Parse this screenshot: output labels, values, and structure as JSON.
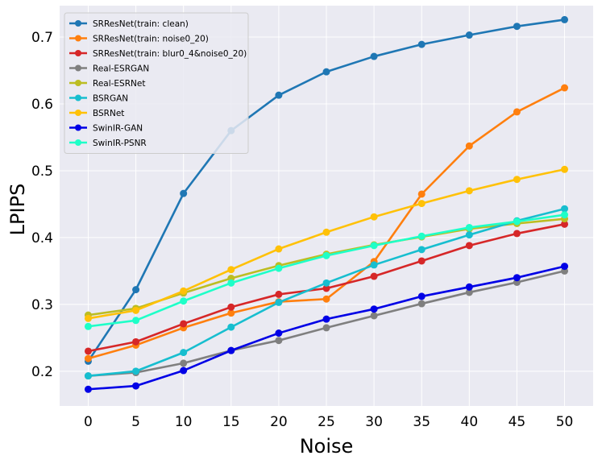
{
  "chart_data": {
    "type": "line",
    "xlabel": "Noise",
    "ylabel": "LPIPS",
    "x": [
      0,
      5,
      10,
      15,
      20,
      25,
      30,
      35,
      40,
      45,
      50
    ],
    "xlim": [
      -3,
      53
    ],
    "ylim": [
      0.148,
      0.747
    ],
    "xticks": [
      0,
      5,
      10,
      15,
      20,
      25,
      30,
      35,
      40,
      45,
      50
    ],
    "yticks": [
      0.2,
      0.3,
      0.4,
      0.5,
      0.6,
      0.7
    ],
    "ytick_labels": [
      "0.2",
      "0.3",
      "0.4",
      "0.5",
      "0.6",
      "0.7"
    ],
    "grid": true,
    "legend_position": "top-left",
    "series": [
      {
        "name": "SRResNet(train: clean)",
        "color": "#1f77b4",
        "values": [
          0.215,
          0.322,
          0.466,
          0.56,
          0.613,
          0.648,
          0.671,
          0.689,
          0.703,
          0.716,
          0.726
        ]
      },
      {
        "name": "SRResNet(train: noise0_20)",
        "color": "#ff7f0e",
        "values": [
          0.219,
          0.239,
          0.265,
          0.287,
          0.304,
          0.308,
          0.364,
          0.465,
          0.537,
          0.588,
          0.624
        ]
      },
      {
        "name": "SRResNet(train: blur0_4&noise0_20)",
        "color": "#d62728",
        "values": [
          0.23,
          0.244,
          0.271,
          0.296,
          0.315,
          0.324,
          0.342,
          0.365,
          0.388,
          0.406,
          0.42
        ]
      },
      {
        "name": "Real-ESRGAN",
        "color": "#7f7f7f",
        "values": [
          0.193,
          0.198,
          0.212,
          0.231,
          0.246,
          0.265,
          0.283,
          0.301,
          0.318,
          0.333,
          0.35
        ]
      },
      {
        "name": "Real-ESRNet",
        "color": "#bcbd22",
        "values": [
          0.284,
          0.294,
          0.317,
          0.339,
          0.358,
          0.375,
          0.389,
          0.401,
          0.413,
          0.421,
          0.428
        ]
      },
      {
        "name": "BSRGAN",
        "color": "#17becf",
        "values": [
          0.193,
          0.2,
          0.228,
          0.266,
          0.303,
          0.332,
          0.359,
          0.382,
          0.404,
          0.425,
          0.443
        ]
      },
      {
        "name": "BSRNet",
        "color": "#ffc107",
        "values": [
          0.279,
          0.291,
          0.32,
          0.352,
          0.383,
          0.408,
          0.431,
          0.451,
          0.47,
          0.487,
          0.502
        ]
      },
      {
        "name": "SwinIR-GAN",
        "color": "#0000e6",
        "values": [
          0.173,
          0.178,
          0.201,
          0.231,
          0.257,
          0.278,
          0.293,
          0.312,
          0.326,
          0.34,
          0.357
        ]
      },
      {
        "name": "SwinIR-PSNR",
        "color": "#1effc8",
        "values": [
          0.267,
          0.276,
          0.305,
          0.332,
          0.354,
          0.373,
          0.388,
          0.402,
          0.415,
          0.424,
          0.434
        ]
      }
    ]
  }
}
